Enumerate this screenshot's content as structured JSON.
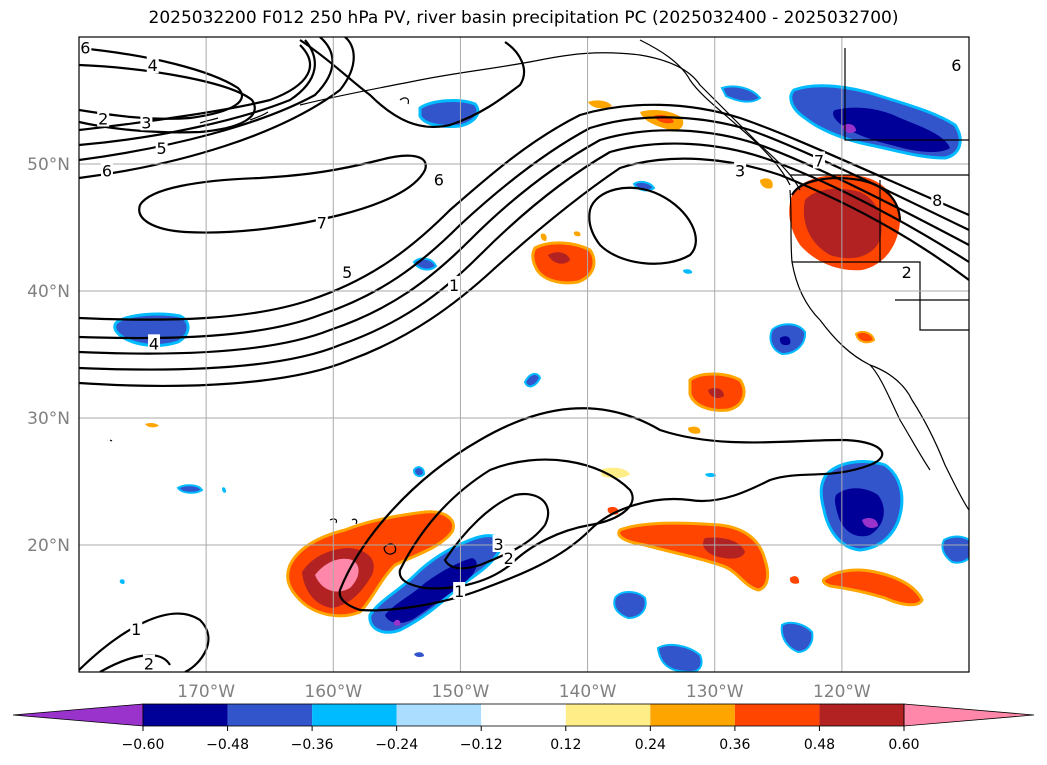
{
  "title": "2025032200 F012 250 hPa PV, river basin precipitation PC (2025032400 - 2025032700)",
  "map": {
    "lon_range": [
      -180,
      -110
    ],
    "lat_range": [
      10,
      60
    ],
    "lon_ticks": [
      {
        "value": -170,
        "label": "170°W"
      },
      {
        "value": -160,
        "label": "160°W"
      },
      {
        "value": -150,
        "label": "150°W"
      },
      {
        "value": -140,
        "label": "140°W"
      },
      {
        "value": -130,
        "label": "130°W"
      },
      {
        "value": -120,
        "label": "120°W"
      }
    ],
    "lat_ticks": [
      {
        "value": 20,
        "label": "20°N"
      },
      {
        "value": 30,
        "label": "30°N"
      },
      {
        "value": 40,
        "label": "40°N"
      },
      {
        "value": 50,
        "label": "50°N"
      }
    ],
    "grid": true
  },
  "colorbar": {
    "levels": [
      "−0.60",
      "−0.48",
      "−0.36",
      "−0.24",
      "−0.12",
      "0.12",
      "0.24",
      "0.36",
      "0.48",
      "0.60"
    ],
    "colors": [
      "#9933cc",
      "#000099",
      "#3355cc",
      "#00bbff",
      "#aaddff",
      "#ffffff",
      "#ffee88",
      "#ffa500",
      "#ff4500",
      "#b22222",
      "#ff88aa"
    ],
    "extend": "both"
  },
  "contour_labels": [
    {
      "text": "6",
      "lon": -179.5,
      "lat": 59.1
    },
    {
      "text": "4",
      "lon": -174.2,
      "lat": 57.7
    },
    {
      "text": "2",
      "lon": -178.1,
      "lat": 53.5
    },
    {
      "text": "3",
      "lon": -174.7,
      "lat": 53.2
    },
    {
      "text": "5",
      "lon": -173.5,
      "lat": 51.2
    },
    {
      "text": "6",
      "lon": -177.8,
      "lat": 49.4
    },
    {
      "text": "7",
      "lon": -160.9,
      "lat": 45.3
    },
    {
      "text": "6",
      "lon": -151.7,
      "lat": 48.7
    },
    {
      "text": "5",
      "lon": -158.9,
      "lat": 41.4
    },
    {
      "text": "1",
      "lon": -150.5,
      "lat": 40.4
    },
    {
      "text": "4",
      "lon": -174.1,
      "lat": 35.8
    },
    {
      "text": "3",
      "lon": -128.0,
      "lat": 49.4
    },
    {
      "text": "7",
      "lon": -121.8,
      "lat": 50.2
    },
    {
      "text": "8",
      "lon": -112.5,
      "lat": 47.1
    },
    {
      "text": "2",
      "lon": -114.9,
      "lat": 41.4
    },
    {
      "text": "6",
      "lon": -111.0,
      "lat": 57.7
    },
    {
      "text": "3",
      "lon": -147.0,
      "lat": 20.0
    },
    {
      "text": "2",
      "lon": -146.2,
      "lat": 18.9
    },
    {
      "text": "1",
      "lon": -150.1,
      "lat": 16.3
    },
    {
      "text": "1",
      "lon": -175.5,
      "lat": 13.3
    },
    {
      "text": "2",
      "lon": -174.5,
      "lat": 10.6
    }
  ],
  "coast_features": [
    "alaska-coastline",
    "west-coast-north-america",
    "baja-california",
    "aleutian-islands",
    "hawaiian-islands",
    "state-borders"
  ]
}
